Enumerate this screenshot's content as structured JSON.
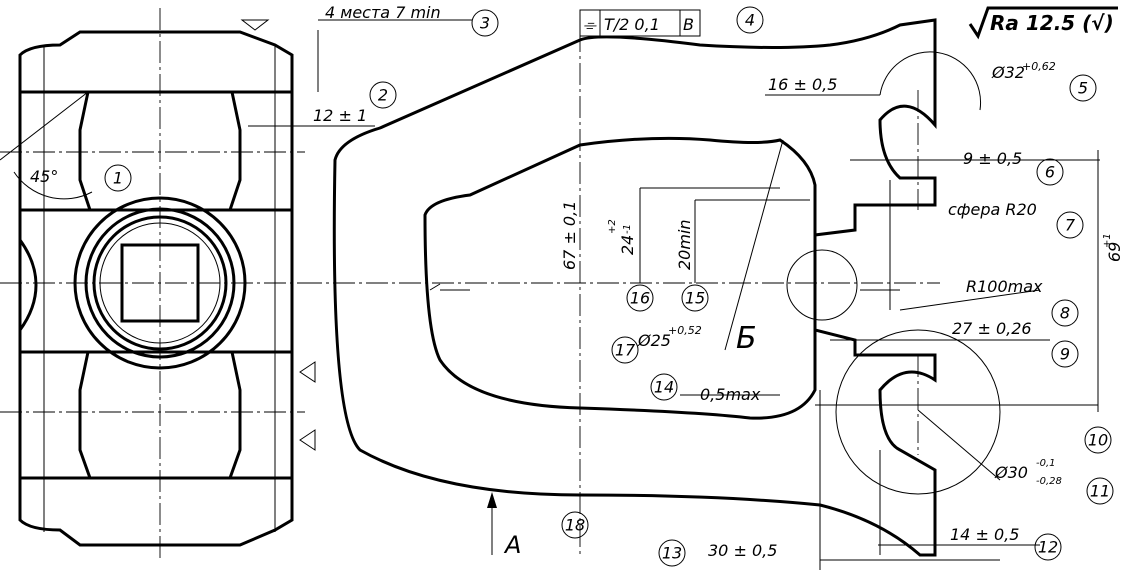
{
  "roughness": "Ra 12.5 (√)",
  "tolerance_frame": {
    "symbol": "⌯",
    "value": "T/2 0,1",
    "datum": "B"
  },
  "dimensions": {
    "places": "4 места 7 min",
    "d12": "12 ± 1",
    "angle": "45°",
    "d16": "16 ± 0,5",
    "dia32": "Ø32",
    "dia32_tol": "+0,62",
    "d9": "9 ± 0,5",
    "sphere": "сфера R20",
    "r100": "R100max",
    "d27": "27 ± 0,26",
    "d67": "67 ± 0,1",
    "d24": "24",
    "d24_up": "+2",
    "d24_lo": "-1",
    "d20min": "20min",
    "dia25": "Ø25",
    "dia25_tol": "+0,52",
    "d69": "69",
    "d69_tol": "+1",
    "dia30": "Ø30",
    "dia30_up": "-0,1",
    "dia30_lo": "-0,28",
    "d05max": "0,5max",
    "d14": "14 ± 0,5",
    "d30": "30 ± 0,5"
  },
  "section_letter": "Б",
  "view_letter": "A",
  "callouts": [
    "1",
    "2",
    "3",
    "4",
    "5",
    "6",
    "7",
    "8",
    "9",
    "10",
    "11",
    "12",
    "13",
    "14",
    "15",
    "16",
    "17",
    "18"
  ]
}
